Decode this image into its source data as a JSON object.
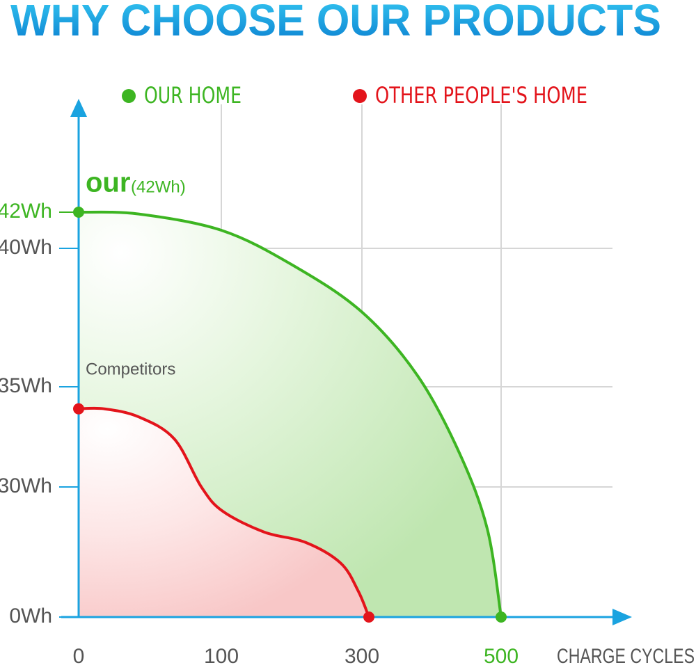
{
  "chart_data": {
    "type": "area",
    "title": "WHY CHOOSE OUR PRODUCTS",
    "x_label": "CHARGE CYCLES",
    "xticks": [
      0,
      100,
      300,
      500
    ],
    "yticks": [
      {
        "value": 0,
        "label": "0Wh"
      },
      {
        "value": 30,
        "label": "30Wh"
      },
      {
        "value": 35,
        "label": "35Wh"
      },
      {
        "value": 40,
        "label": "40Wh"
      },
      {
        "value": 42,
        "label": "42Wh"
      }
    ],
    "grid": true,
    "annotations": [
      {
        "text": "our",
        "detail": "(42Wh)"
      },
      {
        "text": "Competitors"
      }
    ],
    "series": [
      {
        "name": "OUR HOME",
        "color": "#3db522",
        "x": [
          0,
          42,
          100,
          201,
          300,
          380,
          440,
          480,
          500
        ],
        "values": [
          42,
          41.9,
          41.0,
          39.4,
          37.7,
          35.4,
          31.7,
          20.4,
          0
        ]
      },
      {
        "name": "OTHER PEOPLE'S HOME",
        "color": "#e3141b",
        "x": [
          0,
          18,
          42,
          67,
          86,
          102,
          161,
          220,
          270,
          295,
          310
        ],
        "values": [
          33.9,
          33.9,
          33.5,
          32.4,
          30,
          24.4,
          19.6,
          17.2,
          12.4,
          5.9,
          0
        ]
      }
    ]
  }
}
